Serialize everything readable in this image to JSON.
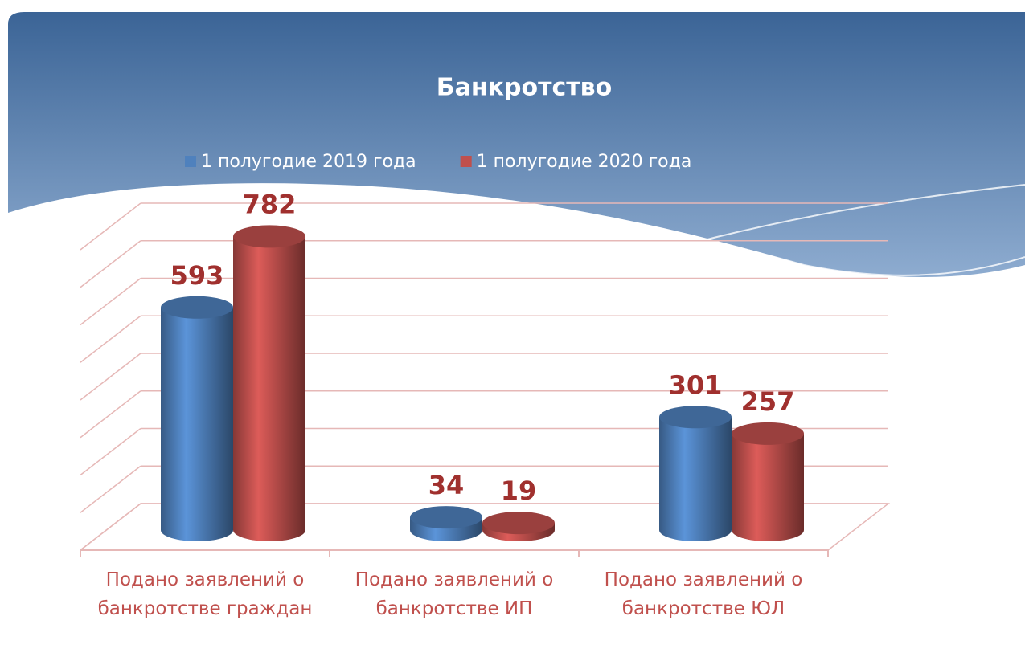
{
  "chart_data": {
    "type": "bar3d",
    "title": "Банкротство",
    "categories": [
      "Подано заявлений о банкротстве граждан",
      "Подано заявлений о банкротстве ИП",
      "Подано заявлений о банкротстве ЮЛ"
    ],
    "series": [
      {
        "name": "1 полугодие 2019 года",
        "color": "#4f81bd",
        "values": [
          593,
          34,
          301
        ]
      },
      {
        "name": "1 полугодие 2020 года",
        "color": "#c0504d",
        "values": [
          782,
          19,
          257
        ]
      }
    ],
    "ylim": [
      0,
      800
    ],
    "yticks": [
      0,
      100,
      200,
      300,
      400,
      500,
      600,
      700,
      800
    ],
    "grid": true
  }
}
